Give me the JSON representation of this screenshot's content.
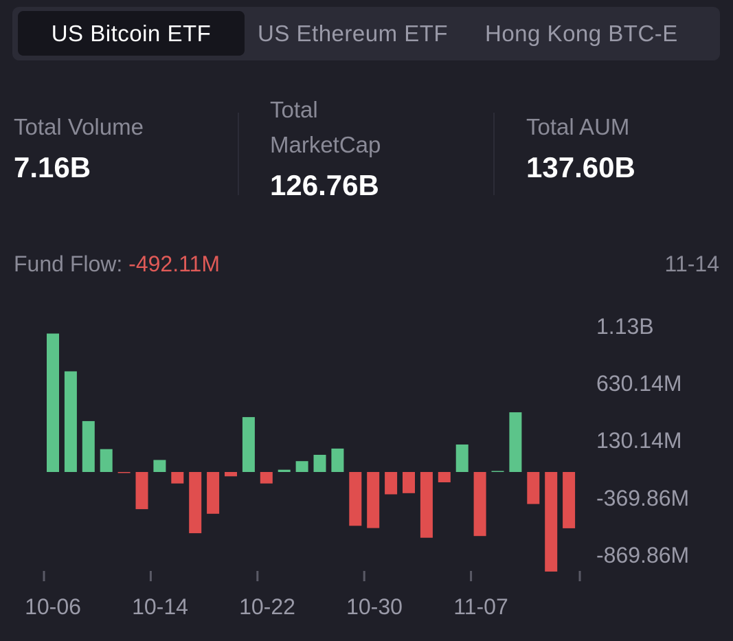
{
  "tabs": [
    {
      "label": "US Bitcoin ETF",
      "active": true
    },
    {
      "label": "US Ethereum ETF",
      "active": false
    },
    {
      "label": "Hong Kong BTC-E",
      "active": false
    }
  ],
  "stats": {
    "volume": {
      "label": "Total Volume",
      "value": "7.16B"
    },
    "marketcap": {
      "label_line1": "Total",
      "label_line2": "MarketCap",
      "value": "126.76B"
    },
    "aum": {
      "label": "Total AUM",
      "value": "137.60B"
    }
  },
  "fund_flow": {
    "label": "Fund Flow:",
    "value": "-492.11M",
    "date": "11-14"
  },
  "colors": {
    "positive": "#5cc48a",
    "negative": "#e04e4e",
    "background": "#1f1f28"
  },
  "chart_data": {
    "type": "bar",
    "x_tick_labels": [
      "10-06",
      "10-14",
      "10-22",
      "10-30",
      "11-07"
    ],
    "y_tick_labels": [
      "1.13B",
      "630.14M",
      "130.14M",
      "-369.86M",
      "-869.86M"
    ],
    "y_tick_values": [
      1130140000,
      630140000,
      130140000,
      -369860000,
      -869860000
    ],
    "values_millions": [
      1210,
      880,
      445,
      200,
      -8,
      -325,
      105,
      -100,
      -535,
      -365,
      -38,
      480,
      -100,
      20,
      95,
      150,
      205,
      -470,
      -490,
      -195,
      -185,
      -575,
      -90,
      240,
      -560,
      0,
      522,
      -280,
      -870,
      -492.11
    ]
  }
}
